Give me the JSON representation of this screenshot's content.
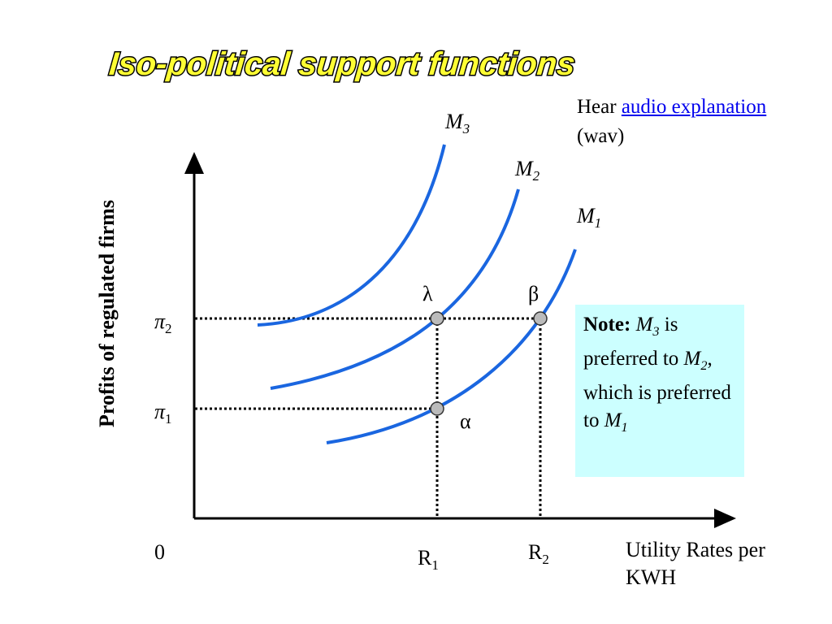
{
  "title": "Iso-political support functions",
  "audio": {
    "prefix": "Hear",
    "link": "audio explanation",
    "suffix": "(wav)"
  },
  "y_axis_label": "Profits of regulated firms",
  "x_axis_label": "Utility Rates per KWH",
  "origin": "0",
  "x_marks": [
    {
      "base": "R",
      "sub": "1"
    },
    {
      "base": "R",
      "sub": "2"
    }
  ],
  "y_marks": [
    {
      "base": "π",
      "sub": "2"
    },
    {
      "base": "π",
      "sub": "1"
    }
  ],
  "curves": [
    {
      "base": "M",
      "sub": "3"
    },
    {
      "base": "M",
      "sub": "2"
    },
    {
      "base": "M",
      "sub": "1"
    }
  ],
  "points": [
    "λ",
    "β",
    "α"
  ],
  "note": {
    "lead": "Note:",
    "first": {
      "base": "M",
      "sub": "3"
    },
    "mid": "is preferred to",
    "second": {
      "base": "M",
      "sub": "2"
    },
    "tail": ", which is preferred to",
    "third": {
      "base": "M",
      "sub": "1"
    }
  }
}
